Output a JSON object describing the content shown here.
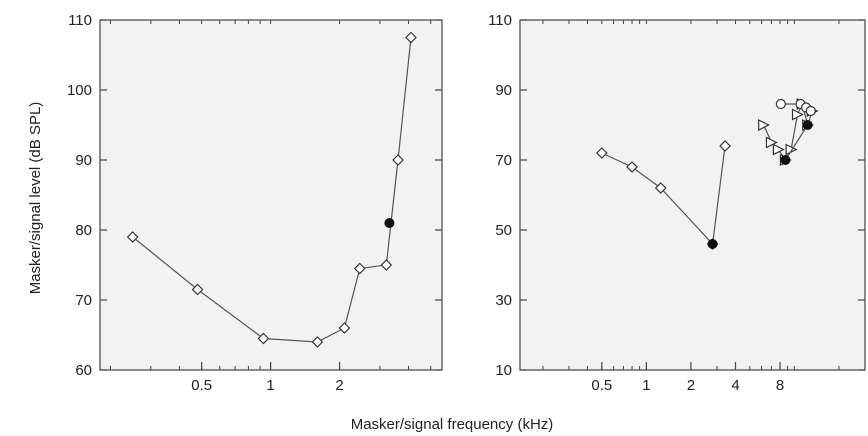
{
  "figure": {
    "ylabel": "Masker/signal level (dB SPL)",
    "xlabel": "Masker/signal frequency (kHz)"
  },
  "colors": {
    "plot_bg": "#f2f2f2",
    "frame": "#444444",
    "line": "#555555",
    "marker_edge": "#333333",
    "filled_marker": "#111111",
    "text": "#222222"
  },
  "chart_data": [
    {
      "type": "line",
      "xscale": "log",
      "xlim": [
        0.18,
        5.6
      ],
      "ylim": [
        60,
        110
      ],
      "xticks": [
        0.5,
        1,
        2
      ],
      "xtick_labels": [
        "0.5",
        "1",
        "2"
      ],
      "yticks": [
        60,
        70,
        80,
        90,
        100,
        110
      ],
      "ytick_labels": [
        "60",
        "70",
        "80",
        "90",
        "100",
        "110"
      ],
      "grid": false,
      "series": [
        {
          "marker": "open-diamond",
          "points": [
            {
              "x": 0.25,
              "y": 79
            },
            {
              "x": 0.48,
              "y": 71.5
            },
            {
              "x": 0.93,
              "y": 64.5
            },
            {
              "x": 1.6,
              "y": 64
            },
            {
              "x": 2.1,
              "y": 66
            },
            {
              "x": 2.45,
              "y": 74.5
            },
            {
              "x": 3.2,
              "y": 75
            },
            {
              "x": 3.6,
              "y": 90
            },
            {
              "x": 4.1,
              "y": 107.5
            }
          ]
        },
        {
          "marker": "filled-circle",
          "points": [
            {
              "x": 3.3,
              "y": 81
            }
          ]
        }
      ]
    },
    {
      "type": "line",
      "xscale": "log",
      "xlim": [
        0.14,
        30
      ],
      "ylim": [
        10,
        110
      ],
      "xticks": [
        0.5,
        1,
        2,
        4,
        8
      ],
      "xtick_labels": [
        "0.5",
        "1",
        "2",
        "4",
        "8"
      ],
      "yticks": [
        10,
        30,
        50,
        70,
        90,
        110
      ],
      "ytick_labels": [
        "10",
        "30",
        "50",
        "70",
        "90",
        "110"
      ],
      "grid": false,
      "series": [
        {
          "marker": "open-diamond",
          "points": [
            {
              "x": 0.5,
              "y": 72
            },
            {
              "x": 0.8,
              "y": 68
            },
            {
              "x": 1.25,
              "y": 62
            },
            {
              "x": 2.8,
              "y": 46
            },
            {
              "x": 3.4,
              "y": 74
            }
          ]
        },
        {
          "marker": "filled-circle",
          "points": [
            {
              "x": 2.8,
              "y": 46
            }
          ]
        },
        {
          "marker": "open-triangle",
          "points": [
            {
              "x": 6.2,
              "y": 80
            },
            {
              "x": 7.0,
              "y": 75
            },
            {
              "x": 7.8,
              "y": 73
            },
            {
              "x": 8.7,
              "y": 70
            },
            {
              "x": 9.5,
              "y": 73
            },
            {
              "x": 10.5,
              "y": 83
            },
            {
              "x": 11.3,
              "y": 86
            },
            {
              "x": 12.3,
              "y": 80
            },
            {
              "x": 13.2,
              "y": 84
            }
          ]
        },
        {
          "marker": "filled-circle",
          "points": [
            {
              "x": 8.7,
              "y": 70
            },
            {
              "x": 12.3,
              "y": 80
            }
          ]
        },
        {
          "marker": "open-circle",
          "points": [
            {
              "x": 8.1,
              "y": 86
            },
            {
              "x": 11.0,
              "y": 86
            },
            {
              "x": 12.0,
              "y": 85
            },
            {
              "x": 12.9,
              "y": 84
            }
          ]
        }
      ]
    }
  ]
}
